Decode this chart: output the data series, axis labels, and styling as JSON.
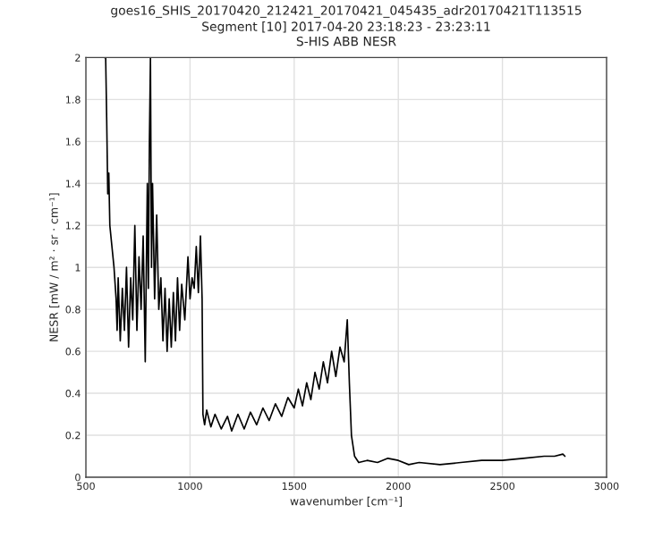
{
  "chart_data": {
    "type": "line",
    "title": "goes16_SHIS_20170420_212421_20170421_045435_adr20170421T113515",
    "subtitle": "Segment [10] 2017-04-20 23:18:23 - 23:23:11\nS-HIS ABB NESR",
    "xlabel": "wavenumber [cm⁻¹]",
    "ylabel": "NESR [mW / m² · sr · cm⁻¹]",
    "xlim": [
      500,
      3000
    ],
    "xticks": [
      500,
      1000,
      1500,
      2000,
      2500,
      3000
    ],
    "ylim": [
      0,
      2
    ],
    "yticks": [
      0,
      0.2,
      0.4,
      0.6,
      0.8,
      1,
      1.2,
      1.4,
      1.6,
      1.8,
      2
    ],
    "grid": true,
    "line_style": "solid",
    "marker": "none",
    "series": [
      {
        "color": "#000000",
        "x": [
          590,
          595,
          600,
          605,
          610,
          615,
          625,
          635,
          645,
          650,
          655,
          665,
          675,
          685,
          695,
          705,
          715,
          725,
          735,
          745,
          755,
          765,
          775,
          785,
          795,
          800,
          805,
          810,
          815,
          820,
          830,
          840,
          850,
          860,
          870,
          880,
          890,
          900,
          910,
          920,
          930,
          940,
          950,
          960,
          975,
          990,
          1000,
          1010,
          1020,
          1030,
          1040,
          1050,
          1058,
          1062,
          1070,
          1080,
          1100,
          1120,
          1150,
          1180,
          1200,
          1230,
          1260,
          1290,
          1320,
          1350,
          1380,
          1410,
          1440,
          1470,
          1500,
          1520,
          1540,
          1560,
          1580,
          1600,
          1620,
          1640,
          1660,
          1680,
          1700,
          1720,
          1740,
          1755,
          1765,
          1775,
          1790,
          1810,
          1850,
          1900,
          1950,
          2000,
          2050,
          2100,
          2200,
          2300,
          2400,
          2500,
          2600,
          2700,
          2750,
          2790,
          2800
        ],
        "values": [
          2.0,
          2.0,
          1.7,
          1.35,
          1.45,
          1.2,
          1.1,
          1.0,
          0.85,
          0.7,
          0.95,
          0.65,
          0.9,
          0.7,
          1.0,
          0.62,
          0.95,
          0.75,
          1.2,
          0.7,
          1.05,
          0.8,
          1.15,
          0.55,
          1.4,
          0.9,
          1.6,
          2.0,
          1.0,
          1.4,
          0.85,
          1.25,
          0.8,
          0.95,
          0.65,
          0.9,
          0.6,
          0.85,
          0.62,
          0.88,
          0.65,
          0.95,
          0.7,
          0.92,
          0.75,
          1.05,
          0.85,
          0.95,
          0.9,
          1.1,
          0.88,
          1.15,
          0.85,
          0.3,
          0.25,
          0.32,
          0.24,
          0.3,
          0.23,
          0.29,
          0.22,
          0.3,
          0.23,
          0.31,
          0.25,
          0.33,
          0.27,
          0.35,
          0.29,
          0.38,
          0.33,
          0.42,
          0.34,
          0.45,
          0.37,
          0.5,
          0.42,
          0.55,
          0.45,
          0.6,
          0.48,
          0.62,
          0.55,
          0.75,
          0.45,
          0.2,
          0.1,
          0.07,
          0.08,
          0.07,
          0.09,
          0.08,
          0.06,
          0.07,
          0.06,
          0.07,
          0.08,
          0.08,
          0.09,
          0.1,
          0.1,
          0.11,
          0.1
        ]
      }
    ]
  }
}
